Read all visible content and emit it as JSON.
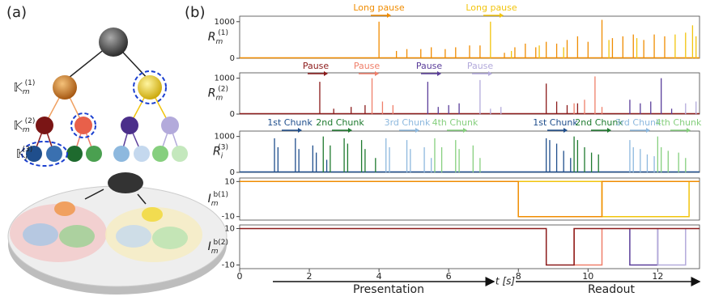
{
  "panel_a": {
    "label": "(a)",
    "levels": [
      {
        "base": "𝕂",
        "sub": "m",
        "sup": "(1)"
      },
      {
        "base": "𝕂",
        "sub": "m",
        "sup": "(2)"
      },
      {
        "base": "𝕂",
        "sub": "i",
        "sup": "(3)"
      }
    ]
  },
  "panel_b": {
    "label": "(b)",
    "xlabel": "t [s]",
    "phases": [
      "Presentation",
      "Readout"
    ]
  },
  "chart_data": [
    {
      "type": "spike",
      "ylabel": {
        "base": "R",
        "sub": "m",
        "sup": "(1)"
      },
      "xlim": [
        0,
        13.2
      ],
      "ylim": [
        0,
        1150
      ],
      "yticks": [
        0,
        1000
      ],
      "annotations": [
        {
          "text": "Long pause",
          "color": "#f08c00"
        },
        {
          "text": "Long pause",
          "color": "#f2c40c"
        }
      ],
      "series": [
        {
          "color": "#f08c00",
          "x": [
            4.0,
            4.5,
            4.8,
            5.2,
            5.5,
            5.9,
            6.2,
            6.6,
            6.9,
            7.6,
            7.9,
            8.2,
            8.5,
            8.8,
            9.1,
            9.4,
            9.7,
            10.0,
            10.4,
            10.7,
            11.0,
            11.3,
            11.6,
            11.9,
            12.2
          ],
          "values": [
            1000,
            200,
            250,
            250,
            300,
            250,
            300,
            350,
            350,
            150,
            300,
            400,
            300,
            450,
            400,
            500,
            600,
            450,
            1050,
            550,
            600,
            650,
            500,
            650,
            600
          ]
        },
        {
          "color": "#f2c40c",
          "x": [
            7.2,
            7.8,
            8.6,
            9.3,
            10.6,
            11.4,
            12.5,
            12.8,
            13.0,
            13.1
          ],
          "values": [
            1000,
            200,
            350,
            300,
            500,
            550,
            650,
            700,
            900,
            600
          ]
        }
      ]
    },
    {
      "type": "spike",
      "ylabel": {
        "base": "R",
        "sub": "m",
        "sup": "(2)"
      },
      "xlim": [
        0,
        13.2
      ],
      "ylim": [
        0,
        1150
      ],
      "yticks": [
        0,
        1000
      ],
      "annotations": [
        {
          "text": "Pause",
          "color": "#8b1a1a"
        },
        {
          "text": "Pause",
          "color": "#ef7f6a"
        },
        {
          "text": "Pause",
          "color": "#5a3d9a"
        },
        {
          "text": "Pause",
          "color": "#b3aadb"
        }
      ],
      "series": [
        {
          "color": "#8b1a1a",
          "x": [
            2.3,
            2.7,
            3.2,
            3.6,
            8.8,
            9.1,
            9.4,
            9.7
          ],
          "values": [
            900,
            150,
            200,
            250,
            850,
            350,
            250,
            300
          ]
        },
        {
          "color": "#ef7f6a",
          "x": [
            3.8,
            4.1,
            4.4,
            9.6,
            9.9,
            10.2,
            10.4
          ],
          "values": [
            1000,
            350,
            250,
            300,
            400,
            1050,
            200
          ]
        },
        {
          "color": "#5a3d9a",
          "x": [
            5.4,
            5.7,
            6.0,
            6.3,
            11.2,
            11.5,
            11.8,
            12.1,
            12.4
          ],
          "values": [
            900,
            200,
            250,
            300,
            400,
            300,
            350,
            1000,
            150
          ]
        },
        {
          "color": "#b3aadb",
          "x": [
            6.9,
            7.2,
            7.5,
            12.8,
            13.1
          ],
          "values": [
            950,
            150,
            200,
            300,
            350
          ]
        }
      ]
    },
    {
      "type": "spike",
      "ylabel": {
        "base": "R",
        "sub": "i",
        "sup": "(3)"
      },
      "xlim": [
        0,
        13.2
      ],
      "ylim": [
        0,
        1150
      ],
      "yticks": [
        0,
        1000
      ],
      "annotations": [
        {
          "text": "1st Chunk",
          "color": "#1f4e8c"
        },
        {
          "text": "2nd Chunk",
          "color": "#1e7a2e"
        },
        {
          "text": "3rd Chunk",
          "color": "#8db8de"
        },
        {
          "text": "4th Chunk",
          "color": "#86cf7e"
        },
        {
          "text": "1st Chunk",
          "color": "#1f4e8c"
        },
        {
          "text": "2nd Chunk",
          "color": "#1e7a2e"
        },
        {
          "text": "3rd Chunk",
          "color": "#8db8de"
        },
        {
          "text": "4th Chunk",
          "color": "#86cf7e"
        }
      ],
      "series": [
        {
          "color": "#1f4e8c",
          "x": [
            1.0,
            1.1,
            1.6,
            1.7,
            2.1,
            2.2,
            2.5,
            8.8,
            8.9,
            9.1,
            9.3,
            9.5
          ],
          "values": [
            950,
            700,
            950,
            650,
            750,
            550,
            350,
            950,
            900,
            800,
            600,
            400
          ]
        },
        {
          "color": "#1e7a2e",
          "x": [
            2.4,
            2.6,
            3.0,
            3.1,
            3.5,
            3.6,
            3.9,
            9.6,
            9.7,
            9.9,
            10.1,
            10.3
          ],
          "values": [
            1000,
            750,
            950,
            800,
            900,
            650,
            400,
            1000,
            900,
            700,
            550,
            500
          ]
        },
        {
          "color": "#8db8de",
          "x": [
            4.2,
            4.3,
            4.8,
            4.9,
            5.3,
            5.5,
            11.2,
            11.3,
            11.5,
            11.7,
            11.9
          ],
          "values": [
            950,
            700,
            900,
            650,
            700,
            400,
            900,
            700,
            650,
            500,
            450
          ]
        },
        {
          "color": "#86cf7e",
          "x": [
            5.6,
            5.8,
            6.2,
            6.3,
            6.7,
            6.9,
            12.0,
            12.1,
            12.3,
            12.6,
            12.8
          ],
          "values": [
            950,
            700,
            900,
            650,
            750,
            400,
            1000,
            700,
            600,
            550,
            400
          ]
        }
      ]
    },
    {
      "type": "step",
      "ylabel": {
        "base": "I",
        "sub": "m",
        "sup": "b(1)"
      },
      "xlim": [
        0,
        13.2
      ],
      "ylim": [
        -12,
        12
      ],
      "yticks": [
        -10,
        10
      ],
      "series": [
        {
          "color": "#f2c40c",
          "x": [
            0,
            10.4,
            10.4,
            12.9,
            12.9,
            13.2
          ],
          "values": [
            10,
            10,
            -10,
            -10,
            10,
            10
          ]
        },
        {
          "color": "#f08c00",
          "x": [
            0,
            8,
            8,
            10.4,
            10.4,
            13.2
          ],
          "values": [
            10,
            10,
            -10,
            -10,
            10,
            10
          ]
        }
      ]
    },
    {
      "type": "step",
      "ylabel": {
        "base": "I",
        "sub": "m",
        "sup": "b(2)"
      },
      "xlim": [
        0,
        13.2
      ],
      "ylim": [
        -12,
        12
      ],
      "yticks": [
        -10,
        10
      ],
      "xticks": [
        0,
        2,
        4,
        6,
        8,
        10,
        12
      ],
      "series": [
        {
          "color": "#ef7f6a",
          "x": [
            9.6,
            9.6,
            10.4,
            10.4
          ],
          "values": [
            10,
            -10,
            -10,
            10
          ]
        },
        {
          "color": "#5a3d9a",
          "x": [
            11.2,
            11.2,
            12,
            12
          ],
          "values": [
            10,
            -10,
            -10,
            10
          ]
        },
        {
          "color": "#b3aadb",
          "x": [
            12,
            12,
            12.8,
            12.8
          ],
          "values": [
            10,
            -10,
            -10,
            10
          ]
        },
        {
          "color": "#8b1a1a",
          "x": [
            0,
            8.8,
            8.8,
            9.6,
            9.6,
            13.2
          ],
          "values": [
            10,
            10,
            -10,
            -10,
            10,
            10
          ]
        }
      ]
    }
  ]
}
